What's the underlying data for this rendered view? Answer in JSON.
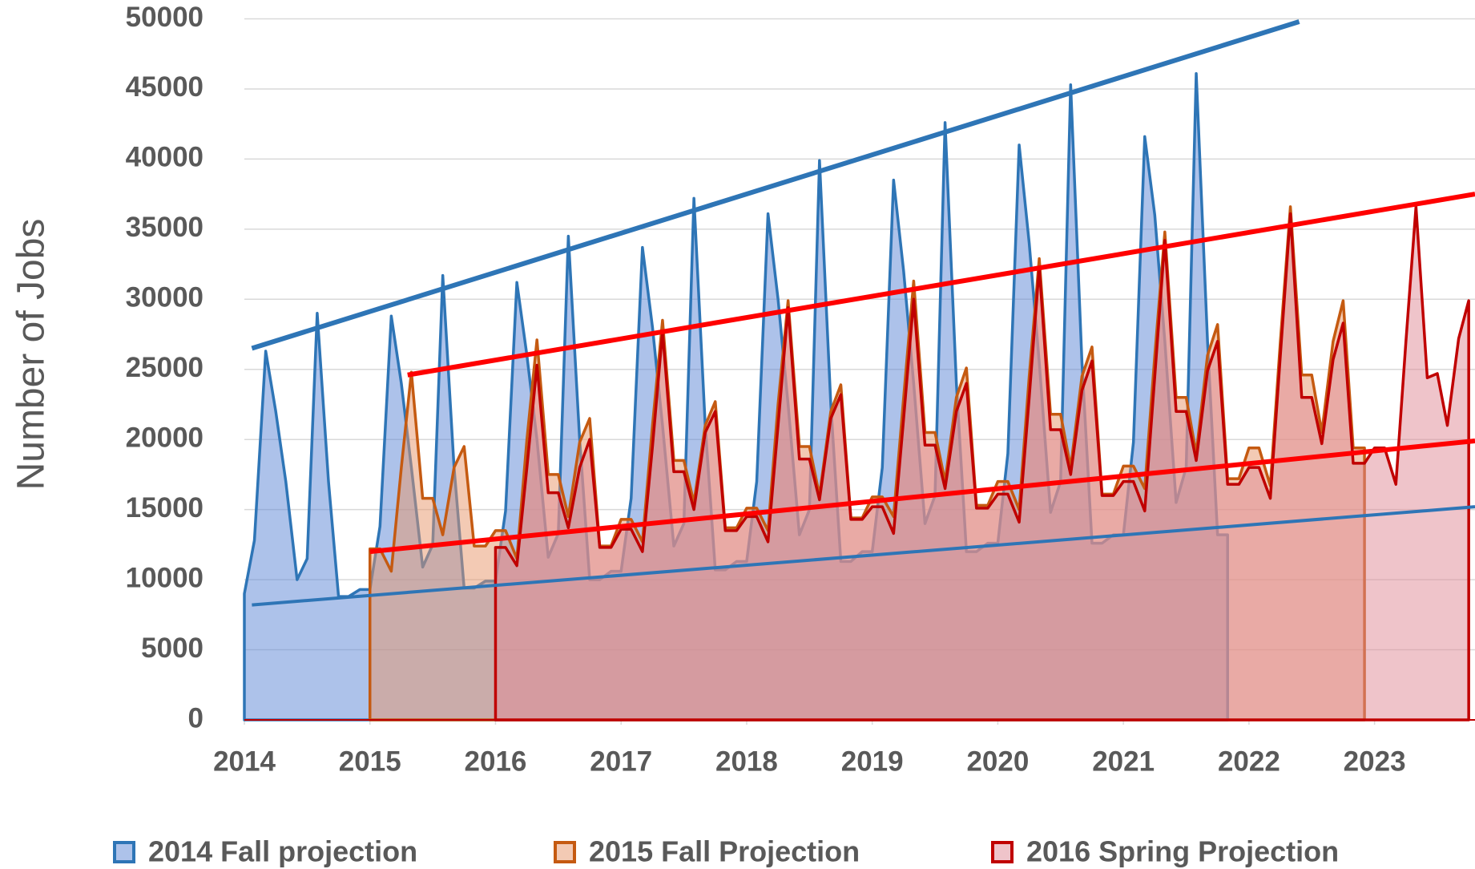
{
  "chart_data": {
    "type": "area",
    "y_label": "Number of Jobs",
    "x": [
      2014,
      2014.08,
      2014.17,
      2014.25,
      2014.33,
      2014.42,
      2014.5,
      2014.58,
      2014.67,
      2014.75,
      2014.83,
      2014.92,
      2015,
      2015.08,
      2015.17,
      2015.25,
      2015.33,
      2015.42,
      2015.5,
      2015.58,
      2015.67,
      2015.75,
      2015.83,
      2015.92,
      2016,
      2016.08,
      2016.17,
      2016.25,
      2016.33,
      2016.42,
      2016.5,
      2016.58,
      2016.67,
      2016.75,
      2016.83,
      2016.92,
      2017,
      2017.08,
      2017.17,
      2017.25,
      2017.33,
      2017.42,
      2017.5,
      2017.58,
      2017.67,
      2017.75,
      2017.83,
      2017.92,
      2018,
      2018.08,
      2018.17,
      2018.25,
      2018.33,
      2018.42,
      2018.5,
      2018.58,
      2018.67,
      2018.75,
      2018.83,
      2018.92,
      2019,
      2019.08,
      2019.17,
      2019.25,
      2019.33,
      2019.42,
      2019.5,
      2019.58,
      2019.67,
      2019.75,
      2019.83,
      2019.92,
      2020,
      2020.08,
      2020.17,
      2020.25,
      2020.33,
      2020.42,
      2020.5,
      2020.58,
      2020.67,
      2020.75,
      2020.83,
      2020.92,
      2021,
      2021.08,
      2021.17,
      2021.25,
      2021.33,
      2021.42,
      2021.5,
      2021.58,
      2021.67,
      2021.75,
      2021.83,
      2021.92,
      2022,
      2022.08,
      2022.17,
      2022.25,
      2022.33,
      2022.42,
      2022.5,
      2022.58,
      2022.67,
      2022.75,
      2022.83,
      2022.92,
      2023,
      2023.08,
      2023.17,
      2023.25,
      2023.33,
      2023.42,
      2023.5,
      2023.58,
      2023.67,
      2023.75
    ],
    "series": [
      {
        "name": "2014 Fall projection",
        "color": "#2e75b6",
        "fill": "#5b86d6",
        "values": [
          9000,
          12800,
          26300,
          22000,
          17000,
          10000,
          11500,
          29000,
          17000,
          8800,
          8800,
          9300,
          9300,
          13800,
          28800,
          24000,
          18000,
          10900,
          12500,
          31700,
          18000,
          9400,
          9400,
          9900,
          9900,
          14900,
          31200,
          26000,
          20000,
          11600,
          13300,
          34500,
          20000,
          10000,
          10000,
          10600,
          10600,
          15800,
          33700,
          28000,
          21000,
          12400,
          14000,
          37200,
          21000,
          10700,
          10700,
          11300,
          11300,
          17000,
          36100,
          30000,
          22500,
          13200,
          15000,
          39900,
          22500,
          11300,
          11300,
          12000,
          12000,
          18000,
          38500,
          32000,
          24000,
          14000,
          16000,
          42600,
          24000,
          12000,
          12000,
          12600,
          12600,
          19000,
          41000,
          34000,
          25500,
          14800,
          17000,
          45300,
          25500,
          12600,
          12600,
          13200,
          13200,
          19800,
          41600,
          36000,
          27000,
          15500,
          18000,
          46100,
          27000,
          13200,
          13200,
          null,
          null,
          null,
          null,
          null,
          null,
          null,
          null,
          null,
          null,
          null,
          null,
          null,
          null,
          null,
          null,
          null,
          null,
          null,
          null,
          null,
          null,
          null
        ]
      },
      {
        "name": "2015 Fall Projection",
        "color": "#c55a11",
        "fill": "#e8956a",
        "values": [
          null,
          null,
          null,
          null,
          null,
          null,
          null,
          null,
          null,
          null,
          null,
          null,
          12200,
          12200,
          10600,
          18000,
          24800,
          15800,
          15800,
          13200,
          18000,
          19500,
          12400,
          12400,
          13500,
          13500,
          11500,
          20000,
          27100,
          17500,
          17500,
          14500,
          19800,
          21500,
          12400,
          12400,
          14300,
          14300,
          12700,
          21000,
          28500,
          18500,
          18500,
          15500,
          21000,
          22700,
          13700,
          13700,
          15100,
          15100,
          13500,
          22500,
          29900,
          19500,
          19500,
          16000,
          22000,
          23900,
          14400,
          14400,
          15900,
          15900,
          14500,
          23000,
          31300,
          20500,
          20500,
          17000,
          23000,
          25100,
          15300,
          15300,
          17000,
          17000,
          15000,
          24500,
          32900,
          21800,
          21800,
          18000,
          24500,
          26600,
          16100,
          16100,
          18100,
          18100,
          16500,
          26000,
          34800,
          23000,
          23000,
          19000,
          26000,
          28200,
          17200,
          17200,
          19400,
          19400,
          16700,
          27000,
          36600,
          24600,
          24600,
          20500,
          27000,
          29900,
          19400,
          19400,
          null,
          null,
          null,
          null,
          null,
          null,
          null,
          null,
          null,
          null
        ]
      },
      {
        "name": "2016 Spring Projection",
        "color": "#c00000",
        "fill": "#e08a96",
        "values": [
          null,
          null,
          null,
          null,
          null,
          null,
          null,
          null,
          null,
          null,
          null,
          null,
          null,
          null,
          null,
          null,
          null,
          null,
          null,
          null,
          null,
          null,
          null,
          null,
          12300,
          12300,
          11000,
          18000,
          25300,
          16200,
          16200,
          13700,
          18000,
          20000,
          12300,
          12300,
          13600,
          13600,
          12000,
          19500,
          27700,
          17700,
          17700,
          15000,
          20500,
          22000,
          13500,
          13500,
          14500,
          14500,
          12700,
          21000,
          29400,
          18600,
          18600,
          15700,
          21500,
          23200,
          14300,
          14300,
          15200,
          15200,
          13300,
          21500,
          30000,
          19600,
          19600,
          16500,
          22000,
          24000,
          15100,
          15100,
          16100,
          16100,
          14100,
          23000,
          32300,
          20700,
          20700,
          17500,
          23500,
          25600,
          16000,
          16000,
          17000,
          17000,
          14900,
          24500,
          34200,
          22000,
          22000,
          18500,
          24900,
          27000,
          16800,
          16800,
          18000,
          18000,
          15800,
          26000,
          36100,
          23000,
          23000,
          19700,
          25700,
          28300,
          18300,
          18300,
          19400,
          19400,
          16800,
          27000,
          36600,
          24400,
          24700,
          21000,
          27200,
          29900
        ]
      }
    ],
    "trendlines": [
      {
        "color": "#2e75b6",
        "x": [
          2014.06,
          2022.4
        ],
        "values": [
          26500,
          49800
        ]
      },
      {
        "color": "#2e75b6",
        "x": [
          2014.06,
          2023.8
        ],
        "values": [
          8200,
          15200
        ]
      },
      {
        "color": "#ff0000",
        "x": [
          2015.3,
          2023.8
        ],
        "values": [
          24600,
          37500
        ]
      },
      {
        "color": "#ff0000",
        "x": [
          2015.0,
          2023.8
        ],
        "values": [
          12000,
          19900
        ]
      }
    ],
    "xlim": [
      2014,
      2023.8
    ],
    "xticks": [
      2014,
      2015,
      2016,
      2017,
      2018,
      2019,
      2020,
      2021,
      2022,
      2023
    ],
    "ylim": [
      0,
      50000
    ],
    "yticks": [
      0,
      5000,
      10000,
      15000,
      20000,
      25000,
      30000,
      35000,
      40000,
      45000,
      50000
    ],
    "grid": true,
    "legend": "bottom"
  }
}
